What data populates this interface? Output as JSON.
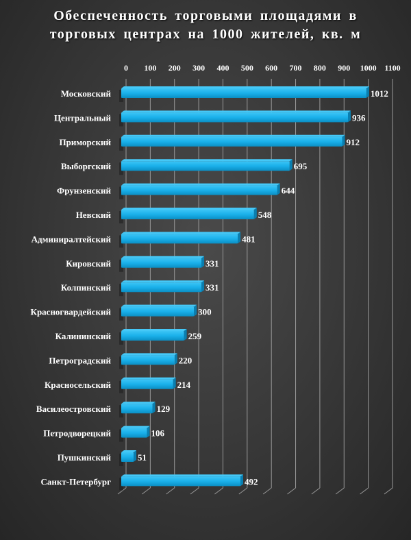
{
  "chart_data": {
    "type": "bar",
    "orientation": "horizontal",
    "title": "Обеспеченность торговыми площадями в торговых центрах на 1000 жителей, кв. м",
    "categories": [
      "Московский",
      "Центральный",
      "Приморский",
      "Выборгский",
      "Фрунзенский",
      "Невский",
      "Админиралтейский",
      "Кировский",
      "Колпинский",
      "Красногвардейский",
      "Калининский",
      "Петроградский",
      "Красносельский",
      "Василеостровский",
      "Петродворецкий",
      "Пушкинский",
      "Санкт-Петербург"
    ],
    "values": [
      1012,
      936,
      912,
      695,
      644,
      548,
      481,
      331,
      331,
      300,
      259,
      220,
      214,
      129,
      106,
      51,
      492
    ],
    "xlim": [
      0,
      1100
    ],
    "xticks": [
      "0",
      "100",
      "200",
      "300",
      "400",
      "500",
      "600",
      "700",
      "800",
      "900",
      "1000",
      "1100"
    ],
    "axis_position": "top",
    "grid": true,
    "legend": "none",
    "bar_color": "#1ab0ea",
    "background_color": "#3a3a3a"
  }
}
